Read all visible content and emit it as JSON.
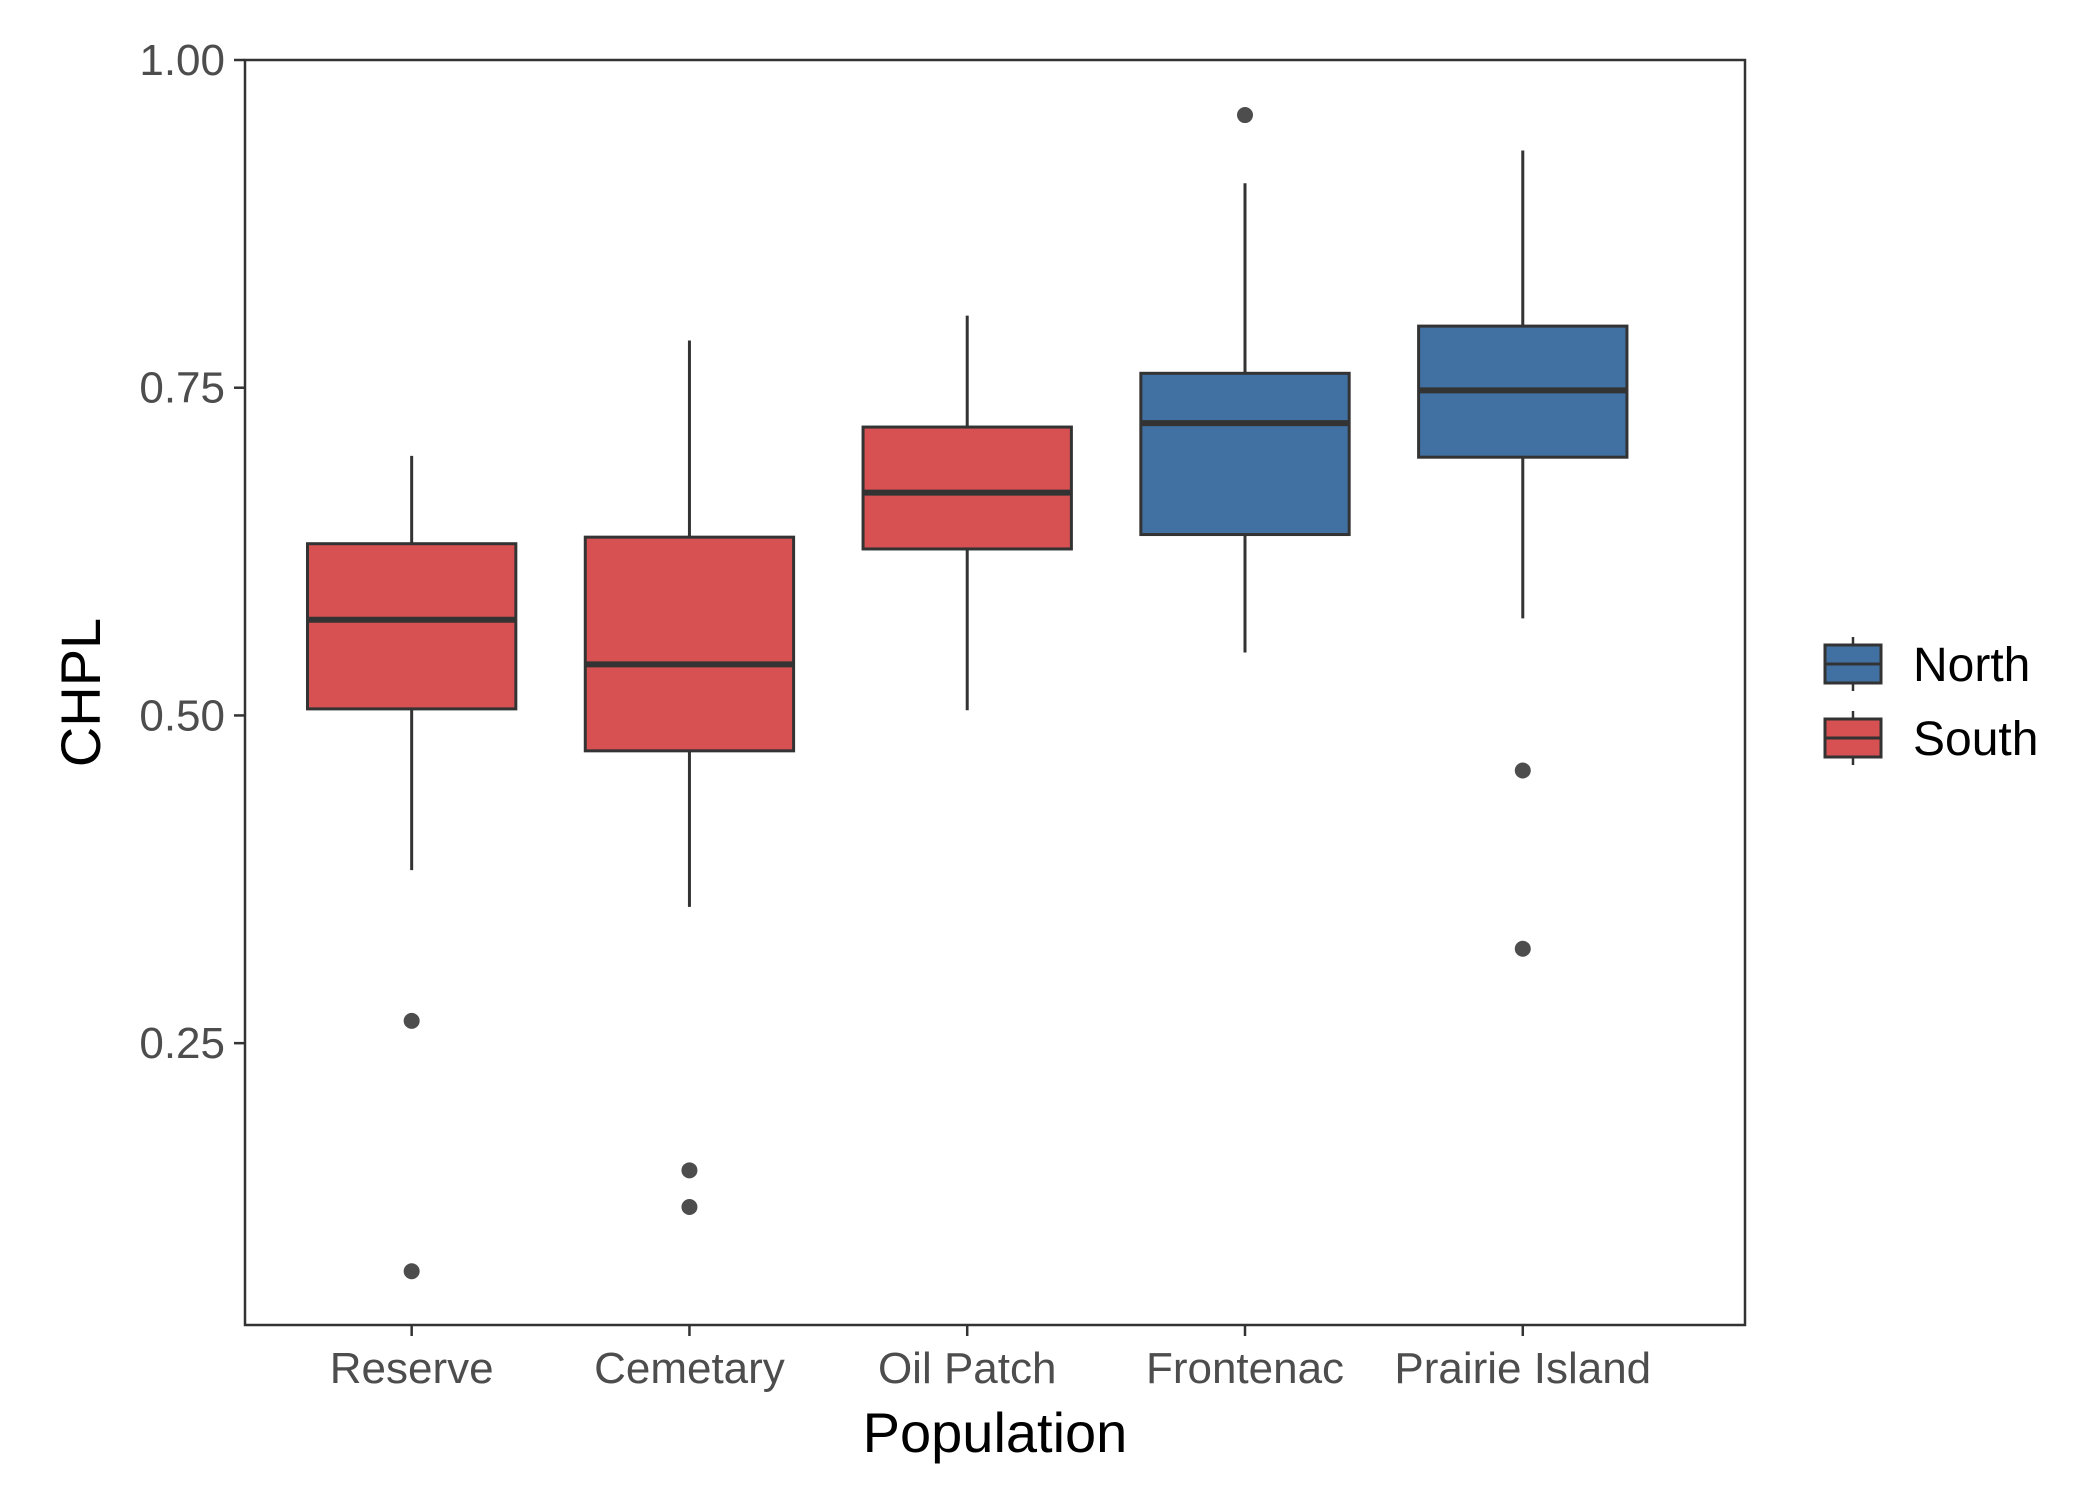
{
  "chart_data": {
    "type": "boxplot",
    "title": "",
    "xlabel": "Population",
    "ylabel": "CHPL",
    "ylim": [
      0.035,
      1.0
    ],
    "yticks": [
      0.25,
      0.5,
      0.75,
      1.0
    ],
    "ytick_labels": [
      "0.25",
      "0.50",
      "0.75",
      "1.00"
    ],
    "categories": [
      "Reserve",
      "Cemetary",
      "Oil Patch",
      "Frontenac",
      "Prairie Island"
    ],
    "grid": false,
    "legend_position": "right",
    "legend": [
      {
        "name": "North",
        "color": "#4170a2"
      },
      {
        "name": "South",
        "color": "#d75153"
      }
    ],
    "boxes": [
      {
        "category": "Reserve",
        "group": "South",
        "whisker_low": 0.382,
        "q1": 0.505,
        "median": 0.573,
        "q3": 0.631,
        "whisker_high": 0.698,
        "outliers": [
          0.267,
          0.076
        ]
      },
      {
        "category": "Cemetary",
        "group": "South",
        "whisker_low": 0.354,
        "q1": 0.473,
        "median": 0.539,
        "q3": 0.636,
        "whisker_high": 0.786,
        "outliers": [
          0.153,
          0.125
        ]
      },
      {
        "category": "Oil Patch",
        "group": "South",
        "whisker_low": 0.504,
        "q1": 0.627,
        "median": 0.67,
        "q3": 0.72,
        "whisker_high": 0.805,
        "outliers": []
      },
      {
        "category": "Frontenac",
        "group": "North",
        "whisker_low": 0.548,
        "q1": 0.638,
        "median": 0.723,
        "q3": 0.761,
        "whisker_high": 0.906,
        "outliers": [
          0.958
        ]
      },
      {
        "category": "Prairie Island",
        "group": "North",
        "whisker_low": 0.574,
        "q1": 0.697,
        "median": 0.748,
        "q3": 0.797,
        "whisker_high": 0.931,
        "outliers": [
          0.458,
          0.322
        ]
      }
    ],
    "colors": {
      "North": "#4170a2",
      "South": "#d75153",
      "box_outline": "#333333",
      "outlier": "#4d4d4d",
      "axis": "#333333"
    }
  }
}
